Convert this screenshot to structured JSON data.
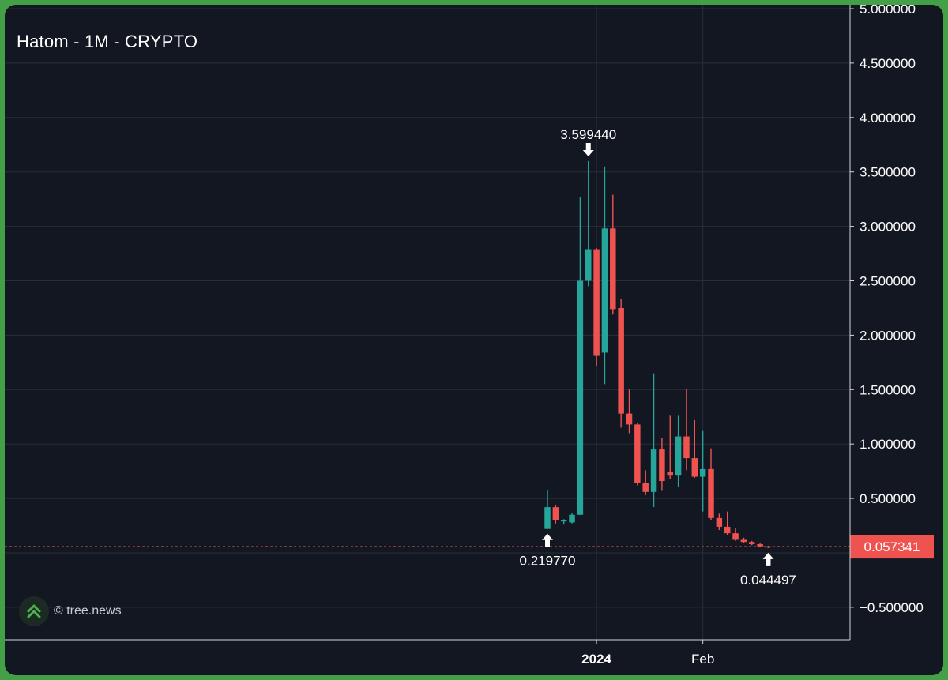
{
  "header": {
    "title": "Hatom - 1M - CRYPTO"
  },
  "watermark": {
    "text": "© tree.news",
    "icon": "double-chevron-up-icon"
  },
  "colors": {
    "background": "#131722",
    "frame": "#43a047",
    "grid": "#2a2e39",
    "up": "#26a69a",
    "down": "#ef5350",
    "text": "#ffffff"
  },
  "chart_data": {
    "type": "candlestick",
    "title": "Hatom - 1M - CRYPTO",
    "ylim": [
      -0.8,
      5.0
    ],
    "y_ticks": [
      5.0,
      4.5,
      4.0,
      3.5,
      3.0,
      2.5,
      2.0,
      1.5,
      1.0,
      0.5,
      -0.5
    ],
    "y_tick_labels": [
      "5.000000",
      "4.500000",
      "4.000000",
      "3.500000",
      "3.000000",
      "2.500000",
      "2.000000",
      "1.500000",
      "1.000000",
      "0.500000",
      "−0.500000"
    ],
    "x_tick_labels": [
      {
        "label": "2024",
        "bold": true,
        "index": 6
      },
      {
        "label": "Feb",
        "bold": false,
        "index": 19
      }
    ],
    "grid": true,
    "last_price": {
      "value": 0.057341,
      "label": "0.057341"
    },
    "annotations": [
      {
        "label": "3.599440",
        "type": "high",
        "index": 5,
        "value": 3.59944
      },
      {
        "label": "0.219770",
        "type": "low",
        "index": 0,
        "value": 0.21977
      },
      {
        "label": "0.044497",
        "type": "low",
        "index": 27,
        "value": 0.044497
      }
    ],
    "candles": [
      {
        "open": 0.22,
        "high": 0.58,
        "low": 0.22,
        "close": 0.42
      },
      {
        "open": 0.42,
        "high": 0.44,
        "low": 0.27,
        "close": 0.3
      },
      {
        "open": 0.29,
        "high": 0.31,
        "low": 0.26,
        "close": 0.3
      },
      {
        "open": 0.28,
        "high": 0.37,
        "low": 0.27,
        "close": 0.35
      },
      {
        "open": 0.35,
        "high": 3.27,
        "low": 0.35,
        "close": 2.5
      },
      {
        "open": 2.5,
        "high": 3.6,
        "low": 2.45,
        "close": 2.79
      },
      {
        "open": 2.79,
        "high": 2.8,
        "low": 1.72,
        "close": 1.81
      },
      {
        "open": 1.84,
        "high": 3.55,
        "low": 1.55,
        "close": 2.98
      },
      {
        "open": 2.98,
        "high": 3.29,
        "low": 2.19,
        "close": 2.24
      },
      {
        "open": 2.25,
        "high": 2.33,
        "low": 1.15,
        "close": 1.28
      },
      {
        "open": 1.28,
        "high": 1.5,
        "low": 1.1,
        "close": 1.18
      },
      {
        "open": 1.18,
        "high": 1.19,
        "low": 0.62,
        "close": 0.64
      },
      {
        "open": 0.64,
        "high": 0.76,
        "low": 0.53,
        "close": 0.56
      },
      {
        "open": 0.56,
        "high": 1.65,
        "low": 0.42,
        "close": 0.95
      },
      {
        "open": 0.95,
        "high": 1.06,
        "low": 0.57,
        "close": 0.66
      },
      {
        "open": 0.74,
        "high": 1.26,
        "low": 0.68,
        "close": 0.71
      },
      {
        "open": 0.71,
        "high": 1.26,
        "low": 0.61,
        "close": 1.07
      },
      {
        "open": 1.07,
        "high": 1.51,
        "low": 0.76,
        "close": 0.87
      },
      {
        "open": 0.87,
        "high": 1.22,
        "low": 0.69,
        "close": 0.7
      },
      {
        "open": 0.7,
        "high": 1.12,
        "low": 0.38,
        "close": 0.77
      },
      {
        "open": 0.77,
        "high": 0.96,
        "low": 0.3,
        "close": 0.32
      },
      {
        "open": 0.32,
        "high": 0.36,
        "low": 0.21,
        "close": 0.24
      },
      {
        "open": 0.24,
        "high": 0.38,
        "low": 0.16,
        "close": 0.18
      },
      {
        "open": 0.18,
        "high": 0.23,
        "low": 0.11,
        "close": 0.12
      },
      {
        "open": 0.12,
        "high": 0.14,
        "low": 0.09,
        "close": 0.1
      },
      {
        "open": 0.1,
        "high": 0.11,
        "low": 0.07,
        "close": 0.08
      },
      {
        "open": 0.08,
        "high": 0.09,
        "low": 0.05,
        "close": 0.06
      },
      {
        "open": 0.06,
        "high": 0.065,
        "low": 0.0445,
        "close": 0.0573
      }
    ]
  }
}
